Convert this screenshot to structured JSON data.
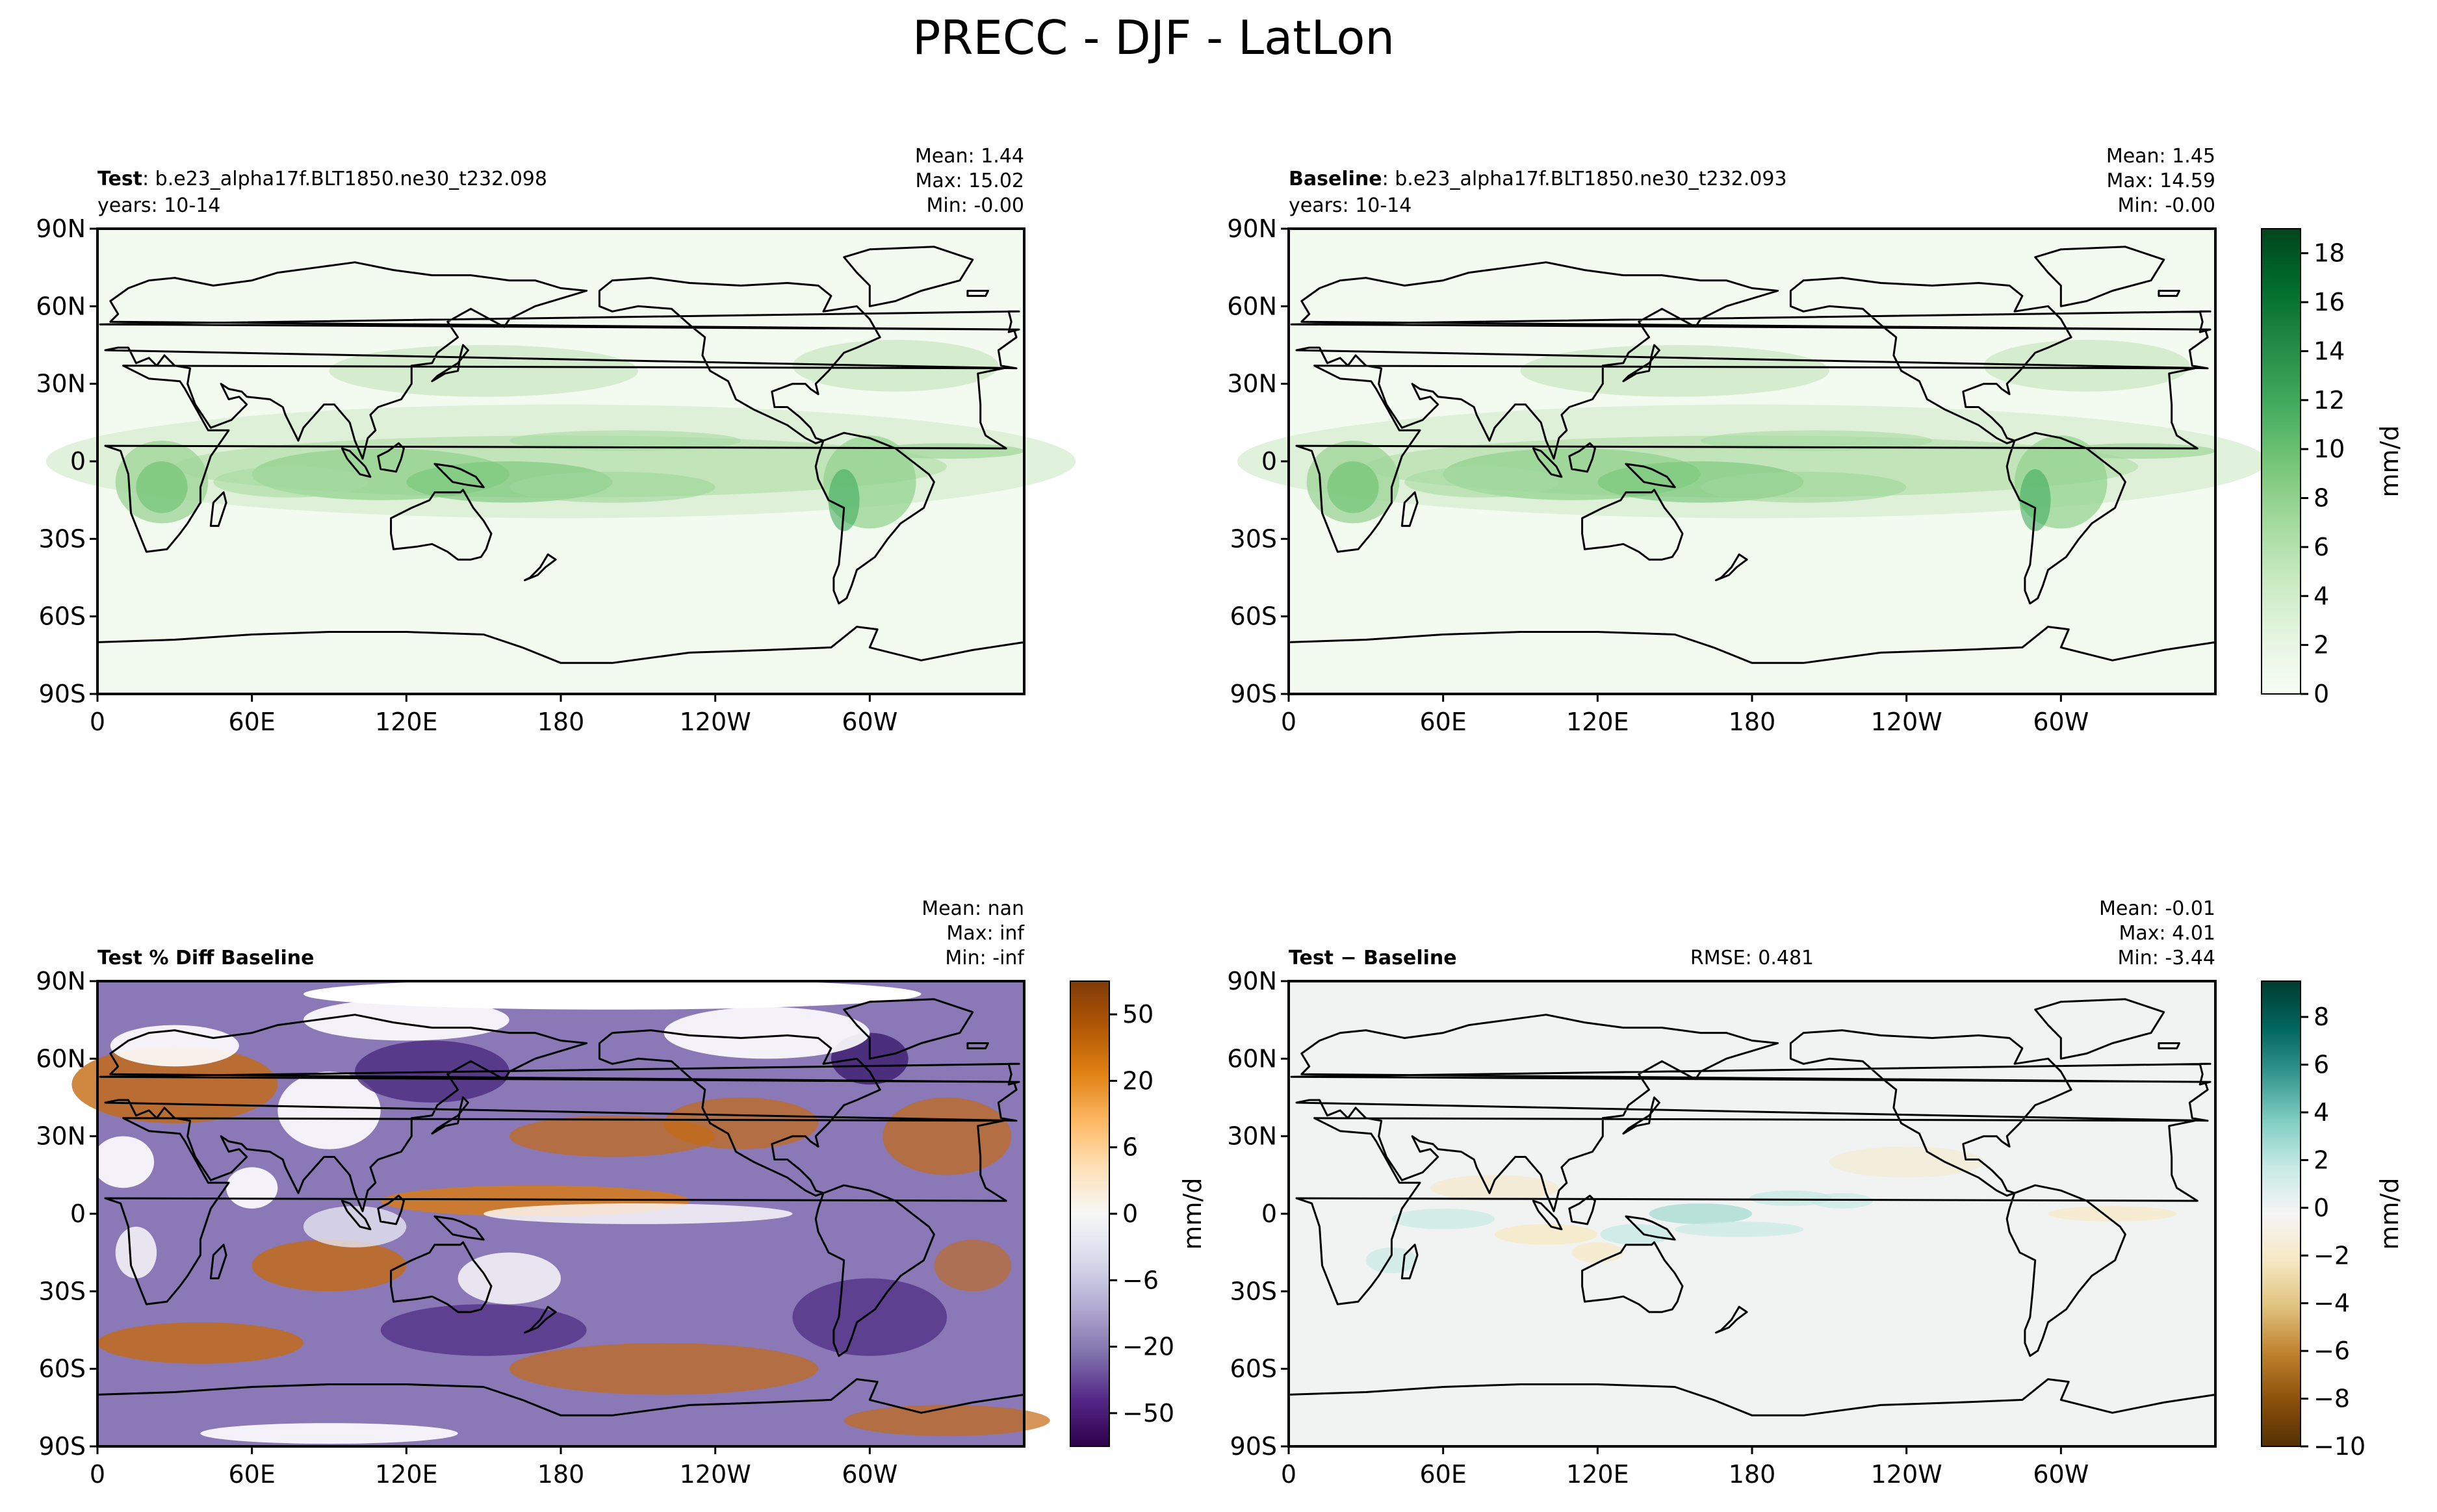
{
  "figure_title": "PRECC - DJF - LatLon",
  "lon_ticks": [
    "0",
    "60E",
    "120E",
    "180",
    "120W",
    "60W"
  ],
  "lat_ticks": [
    "90N",
    "60N",
    "30N",
    "0",
    "30S",
    "60S",
    "90S"
  ],
  "colors": {
    "precip_cmap": [
      "#f7fcf5",
      "#e5f5e0",
      "#c7e9c0",
      "#a1d99b",
      "#74c476",
      "#41ab5d",
      "#238b45",
      "#006d2c",
      "#00441b"
    ],
    "pct_diff_cmap": [
      "#2d004b",
      "#542788",
      "#8073ac",
      "#b2abd2",
      "#d8daeb",
      "#f7f7f7",
      "#fee0b6",
      "#fdb863",
      "#e08214",
      "#b35806",
      "#7f3b08"
    ],
    "abs_diff_cmap": [
      "#543005",
      "#8c510a",
      "#bf812d",
      "#dfc27d",
      "#f6e8c3",
      "#f5f5f5",
      "#c7eae5",
      "#80cdc1",
      "#35978f",
      "#01665e",
      "#003c30"
    ]
  },
  "panels": {
    "test": {
      "label": "Test",
      "case": ": b.e23_alpha17f.BLT1850.ne30_t232.098",
      "years": "years: 10-14",
      "mean": "Mean:  1.44",
      "max": "Max: 15.02",
      "min": "Min: -0.00"
    },
    "baseline": {
      "label": "Baseline",
      "case": ": b.e23_alpha17f.BLT1850.ne30_t232.093",
      "years": "years: 10-14",
      "mean": "Mean:  1.45",
      "max": "Max: 14.59",
      "min": "Min: -0.00"
    },
    "pct_diff": {
      "label": "Test % Diff Baseline",
      "mean": "Mean:   nan",
      "max": "Max:   inf",
      "min": "Min:  -inf"
    },
    "abs_diff": {
      "label": "Test − Baseline",
      "rmse": "RMSE: 0.481",
      "mean": "Mean: -0.01",
      "max": "Max:  4.01",
      "min": "Min: -3.44"
    }
  },
  "colorbars": {
    "precip": {
      "label": "mm/d",
      "ticks": [
        "0",
        "2",
        "4",
        "6",
        "8",
        "10",
        "12",
        "14",
        "16",
        "18"
      ]
    },
    "pct_diff": {
      "label": "mm/d",
      "ticks": [
        "50",
        "20",
        "6",
        "0",
        "−6",
        "−20",
        "−50"
      ]
    },
    "abs_diff": {
      "label": "mm/d",
      "ticks": [
        "8",
        "6",
        "4",
        "2",
        "0",
        "−2",
        "−4",
        "−6",
        "−8",
        "−10"
      ]
    }
  },
  "chart_data": [
    {
      "type": "heatmap",
      "name": "Test",
      "field": "PRECC",
      "season": "DJF",
      "projection": "PlateCarree",
      "xlim": [
        0,
        360
      ],
      "ylim": [
        -90,
        90
      ],
      "cbar_range": [
        0,
        19
      ],
      "stats": {
        "mean": 1.44,
        "max": 15.02,
        "min": -0.0
      }
    },
    {
      "type": "heatmap",
      "name": "Baseline",
      "field": "PRECC",
      "season": "DJF",
      "projection": "PlateCarree",
      "xlim": [
        0,
        360
      ],
      "ylim": [
        -90,
        90
      ],
      "cbar_range": [
        0,
        19
      ],
      "stats": {
        "mean": 1.45,
        "max": 14.59,
        "min": -0.0
      }
    },
    {
      "type": "heatmap",
      "name": "Test % Diff Baseline",
      "field": "PRECC",
      "season": "DJF",
      "projection": "PlateCarree",
      "xlim": [
        0,
        360
      ],
      "ylim": [
        -90,
        90
      ],
      "cbar_levels": [
        -100,
        -75,
        -50,
        -40,
        -30,
        -20,
        -15,
        -10,
        -8,
        -6,
        -4,
        -2,
        0,
        2,
        4,
        6,
        8,
        10,
        15,
        20,
        30,
        40,
        50,
        75,
        100
      ],
      "stats": {
        "mean": "nan",
        "max": "inf",
        "min": "-inf"
      }
    },
    {
      "type": "heatmap",
      "name": "Test − Baseline",
      "field": "PRECC",
      "season": "DJF",
      "projection": "PlateCarree",
      "xlim": [
        0,
        360
      ],
      "ylim": [
        -90,
        90
      ],
      "cbar_range": [
        -10,
        9.5
      ],
      "stats": {
        "mean": -0.01,
        "max": 4.01,
        "min": -3.44,
        "rmse": 0.481
      }
    }
  ]
}
